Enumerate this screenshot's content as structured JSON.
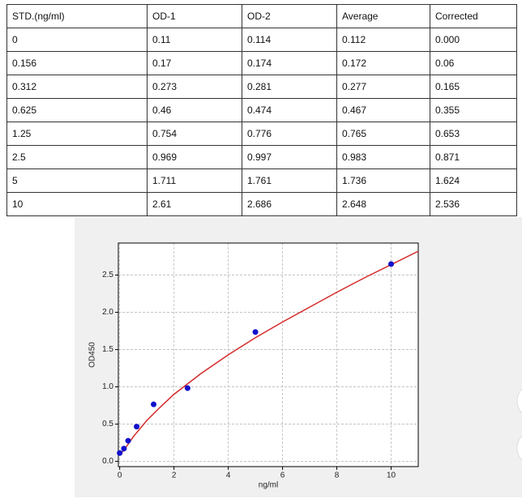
{
  "table": {
    "header": [
      "STD.(ng/ml)",
      "OD-1",
      "OD-2",
      "Average",
      "Corrected"
    ],
    "rows": [
      [
        "0",
        "0.11",
        "0.114",
        "0.112",
        "0.000"
      ],
      [
        "0.156",
        "0.17",
        "0.174",
        "0.172",
        "0.06"
      ],
      [
        "0.312",
        "0.273",
        "0.281",
        "0.277",
        "0.165"
      ],
      [
        "0.625",
        "0.46",
        "0.474",
        "0.467",
        "0.355"
      ],
      [
        "1.25",
        "0.754",
        "0.776",
        "0.765",
        "0.653"
      ],
      [
        "2.5",
        "0.969",
        "0.997",
        "0.983",
        "0.871"
      ],
      [
        "5",
        "1.711",
        "1.761",
        "1.736",
        "1.624"
      ],
      [
        "10",
        "2.61",
        "2.686",
        "2.648",
        "2.536"
      ]
    ]
  },
  "chart_data": {
    "type": "scatter",
    "x_label": "ng/ml",
    "y_label": "OD450",
    "x": [
      0,
      0.156,
      0.312,
      0.625,
      1.25,
      2.5,
      5,
      10
    ],
    "values": [
      0.112,
      0.172,
      0.277,
      0.467,
      0.765,
      0.983,
      1.736,
      2.648
    ],
    "color": "#1010cc",
    "fit_curve": {
      "color": "#d42a2a",
      "x": [
        0,
        0.25,
        0.5,
        1,
        1.5,
        2,
        3,
        4,
        5,
        6,
        7,
        8,
        9,
        10,
        11
      ],
      "values": [
        0.08,
        0.2,
        0.33,
        0.55,
        0.73,
        0.9,
        1.18,
        1.43,
        1.66,
        1.87,
        2.07,
        2.27,
        2.46,
        2.64,
        2.82
      ]
    },
    "xlim": [
      -0.05,
      11
    ],
    "ylim": [
      -0.07,
      2.93
    ],
    "xticks": [
      0,
      2,
      4,
      6,
      8,
      10
    ],
    "yticks": [
      {
        "value": 0,
        "label": "0.0"
      },
      {
        "value": 0.5,
        "label": "0.5"
      },
      {
        "value": 1,
        "label": "1.0"
      },
      {
        "value": 1.5,
        "label": "1.5"
      },
      {
        "value": 2,
        "label": "2.0"
      },
      {
        "value": 2.5,
        "label": "2.5"
      }
    ],
    "grid": true
  }
}
